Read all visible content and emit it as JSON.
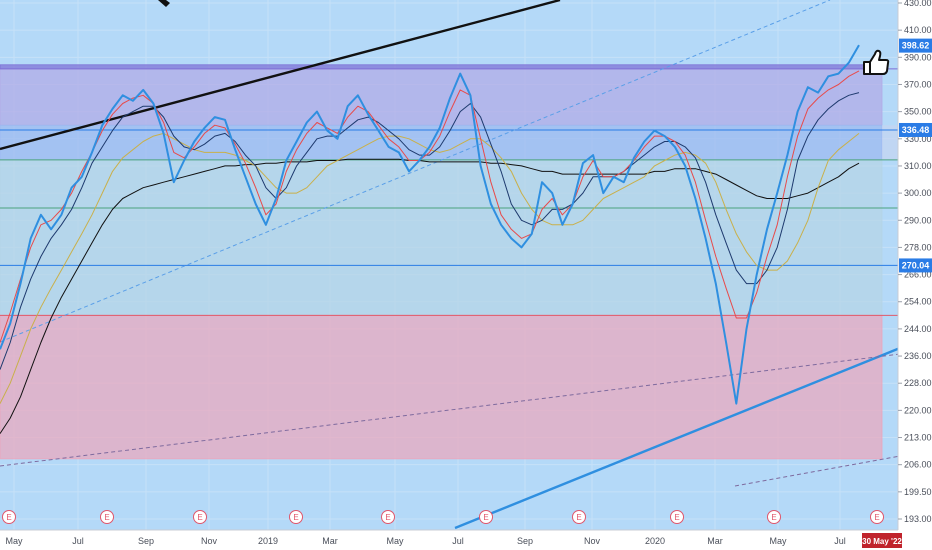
{
  "chart_data": {
    "type": "line",
    "y_ticks": [
      "430.00",
      "410.00",
      "390.00",
      "370.00",
      "350.00",
      "330.00",
      "310.00",
      "300.00",
      "290.00",
      "278.00",
      "266.00",
      "254.00",
      "244.00",
      "236.00",
      "228.00",
      "220.00",
      "213.00",
      "206.00",
      "199.50",
      "193.00"
    ],
    "x_ticks": [
      "May",
      "Jul",
      "Sep",
      "Nov",
      "2019",
      "Mar",
      "May",
      "Jul",
      "Sep",
      "Nov",
      "2020",
      "Mar",
      "May",
      "Jul"
    ],
    "ylim": [
      191.5,
      437
    ],
    "price_labels": [
      {
        "value": 398.62,
        "text": "398.62",
        "color": "#2a7ce6"
      },
      {
        "value": 336.48,
        "text": "336.48",
        "color": "#2a7ce6"
      },
      {
        "value": 270.04,
        "text": "270.04",
        "color": "#2a7ce6"
      }
    ],
    "date_label": "30 May '22",
    "earnings_marker_text": "E",
    "earnings_count": 10,
    "zones": [
      {
        "from": 381.5,
        "to": 384.5,
        "color": "#7e6fd6"
      },
      {
        "from": 340,
        "to": 381.5,
        "color": "#b1a9e6"
      },
      {
        "from": 314.5,
        "to": 340,
        "color": "#9db8f0"
      },
      {
        "from": 249,
        "to": 314.5,
        "color": "#b5d4e6"
      },
      {
        "from": 207.5,
        "to": 249,
        "color": "#eca6bd"
      }
    ],
    "horizontal_lines": [
      {
        "value": 336.48,
        "color": "#2a7ce6"
      },
      {
        "value": 270.04,
        "color": "#2a7ce6"
      },
      {
        "value": 381.5,
        "color": "#7e6fd6"
      },
      {
        "value": 314.5,
        "color": "#4aa37e"
      },
      {
        "value": 294.5,
        "color": "#4aa37e"
      },
      {
        "value": 249,
        "color": "#e05a6a"
      }
    ],
    "series": [
      {
        "color": "#2f8fe0",
        "values": [
          238,
          246,
          262,
          282,
          292,
          286,
          292,
          302,
          306,
          320,
          340,
          352,
          362,
          358,
          366,
          356,
          334,
          304,
          314,
          328,
          338,
          346,
          344,
          322,
          306,
          296,
          288,
          298,
          314,
          328,
          342,
          350,
          336,
          330,
          354,
          362,
          348,
          336,
          324,
          320,
          308,
          314,
          324,
          338,
          360,
          378,
          362,
          310,
          296,
          288,
          282,
          278,
          284,
          304,
          300,
          288,
          296,
          312,
          318,
          300,
          306,
          304,
          316,
          328,
          336,
          332,
          324,
          310,
          298,
          282,
          262,
          240,
          222,
          244,
          266,
          286,
          300,
          318,
          350,
          368,
          364,
          376,
          378,
          386,
          399
        ]
      },
      {
        "color": "#e84a4a",
        "values": [
          240,
          250,
          264,
          278,
          288,
          290,
          294,
          300,
          308,
          320,
          336,
          348,
          356,
          360,
          362,
          356,
          342,
          320,
          316,
          324,
          334,
          340,
          338,
          326,
          312,
          302,
          292,
          296,
          308,
          322,
          334,
          342,
          338,
          334,
          346,
          354,
          350,
          340,
          330,
          324,
          314,
          314,
          320,
          332,
          350,
          366,
          362,
          330,
          304,
          292,
          286,
          282,
          284,
          294,
          298,
          292,
          296,
          306,
          314,
          306,
          306,
          308,
          314,
          324,
          332,
          332,
          328,
          318,
          304,
          290,
          274,
          260,
          248,
          248,
          258,
          274,
          288,
          306,
          332,
          352,
          360,
          366,
          370,
          376,
          380
        ]
      },
      {
        "color": "#1e3a6e",
        "values": [
          232,
          240,
          252,
          264,
          274,
          282,
          288,
          294,
          302,
          312,
          324,
          336,
          346,
          350,
          354,
          354,
          346,
          332,
          324,
          322,
          326,
          332,
          334,
          328,
          318,
          310,
          302,
          298,
          302,
          310,
          320,
          330,
          332,
          332,
          338,
          344,
          346,
          342,
          336,
          330,
          322,
          318,
          318,
          324,
          336,
          350,
          356,
          346,
          326,
          308,
          296,
          290,
          288,
          290,
          294,
          294,
          296,
          300,
          306,
          306,
          306,
          308,
          312,
          318,
          324,
          328,
          328,
          324,
          316,
          304,
          292,
          280,
          268,
          262,
          262,
          268,
          278,
          294,
          314,
          332,
          344,
          352,
          358,
          362,
          364
        ]
      },
      {
        "color": "#c9b04a",
        "values": [
          222,
          228,
          236,
          244,
          252,
          260,
          268,
          276,
          284,
          292,
          300,
          308,
          316,
          322,
          328,
          332,
          334,
          330,
          326,
          322,
          320,
          320,
          320,
          318,
          314,
          310,
          306,
          302,
          300,
          300,
          302,
          306,
          310,
          314,
          318,
          322,
          326,
          330,
          332,
          332,
          330,
          326,
          322,
          320,
          322,
          326,
          330,
          330,
          324,
          316,
          308,
          300,
          294,
          290,
          288,
          288,
          288,
          290,
          294,
          298,
          300,
          302,
          304,
          306,
          310,
          314,
          318,
          320,
          318,
          312,
          304,
          294,
          284,
          276,
          270,
          268,
          268,
          272,
          280,
          290,
          302,
          314,
          322,
          328,
          334
        ]
      },
      {
        "color": "#111111",
        "values": [
          214,
          218,
          224,
          232,
          240,
          248,
          256,
          264,
          272,
          280,
          288,
          294,
          298,
          300,
          302,
          303,
          304,
          305,
          306,
          307,
          308,
          309,
          310,
          310,
          311,
          311,
          312,
          312,
          313,
          313,
          313,
          314,
          314,
          314,
          315,
          315,
          315,
          315,
          315,
          315,
          314,
          314,
          313,
          313,
          313,
          313,
          313,
          313,
          312,
          312,
          311,
          310,
          309,
          308,
          308,
          307,
          307,
          307,
          307,
          307,
          307,
          307,
          307,
          307,
          308,
          308,
          309,
          309,
          309,
          308,
          307,
          305,
          303,
          301,
          299,
          298,
          298,
          298,
          299,
          300,
          302,
          304,
          306,
          309,
          312
        ]
      }
    ],
    "trendlines": [
      {
        "x1": 0,
        "y1": 149,
        "x2": 560,
        "y2": 0,
        "color": "#111111",
        "dash": false,
        "width": 2.4
      },
      {
        "x1": 455,
        "y1": 528,
        "x2": 900,
        "y2": 348,
        "color": "#2f8fe0",
        "dash": false,
        "width": 2.4
      },
      {
        "x1": 0,
        "y1": 342,
        "x2": 830,
        "y2": 0,
        "color": "#5a9fe8",
        "dash": true,
        "width": 1
      },
      {
        "x1": 0,
        "y1": 466,
        "x2": 900,
        "y2": 354,
        "color": "#7e6a9e",
        "dash": true,
        "width": 1
      },
      {
        "x1": 735,
        "y1": 486,
        "x2": 900,
        "y2": 456,
        "color": "#7e6a9e",
        "dash": true,
        "width": 1
      }
    ]
  }
}
